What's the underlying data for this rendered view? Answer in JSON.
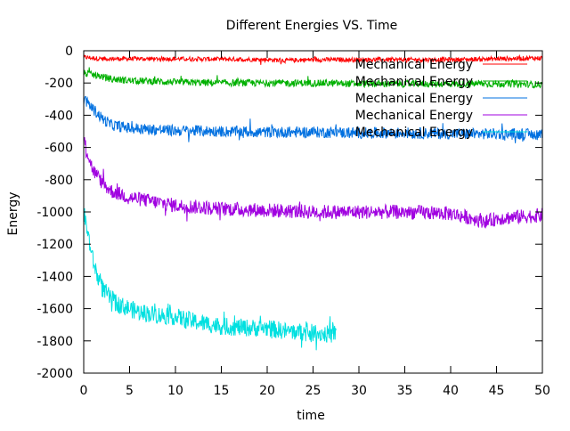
{
  "chart_data": {
    "type": "line",
    "title": "Different Energies VS. Time",
    "xlabel": "time",
    "ylabel": "Energy",
    "xlim": [
      0,
      50
    ],
    "ylim": [
      -2000,
      0
    ],
    "xticks": [
      "0",
      "5",
      "10",
      "15",
      "20",
      "25",
      "30",
      "35",
      "40",
      "45",
      "50"
    ],
    "yticks": [
      "0",
      "-200",
      "-400",
      "-600",
      "-800",
      "-1000",
      "-1200",
      "-1400",
      "-1600",
      "-1800",
      "-2000"
    ],
    "grid": false,
    "legend_position": "top-right",
    "series": [
      {
        "name": "Mechanical Energy",
        "color": "#ff0000",
        "x": [
          0,
          1,
          2,
          3,
          5,
          10,
          15,
          20,
          22,
          25,
          30,
          35,
          40,
          45,
          50
        ],
        "y": [
          -40,
          -45,
          -50,
          -50,
          -50,
          -50,
          -52,
          -55,
          -60,
          -55,
          -55,
          -55,
          -55,
          -50,
          -45
        ]
      },
      {
        "name": "Mechanical Energy",
        "color": "#00b000",
        "x": [
          0,
          1,
          2,
          3,
          5,
          8,
          10,
          15,
          20,
          25,
          30,
          35,
          40,
          45,
          50
        ],
        "y": [
          -140,
          -150,
          -160,
          -175,
          -185,
          -190,
          -195,
          -200,
          -200,
          -200,
          -205,
          -205,
          -205,
          -205,
          -210
        ]
      },
      {
        "name": "Mechanical Energy",
        "color": "#0070e0",
        "x": [
          0,
          1,
          2,
          3,
          5,
          8,
          10,
          15,
          20,
          25,
          30,
          35,
          40,
          45,
          50
        ],
        "y": [
          -300,
          -360,
          -420,
          -460,
          -480,
          -490,
          -495,
          -500,
          -505,
          -505,
          -510,
          -510,
          -515,
          -515,
          -520
        ]
      },
      {
        "name": "Mechanical Energy",
        "color": "#a000e0",
        "x": [
          0,
          0.5,
          1,
          2,
          3,
          5,
          8,
          10,
          15,
          20,
          25,
          30,
          35,
          40,
          44,
          45,
          50
        ],
        "y": [
          -550,
          -650,
          -740,
          -820,
          -870,
          -910,
          -940,
          -960,
          -980,
          -990,
          -1000,
          -1000,
          -1000,
          -1010,
          -1060,
          -1040,
          -1020
        ]
      },
      {
        "name": "Mechanical Energy",
        "color": "#00e0e0",
        "x": [
          0,
          0.5,
          1,
          1.5,
          2,
          3,
          4,
          5,
          6,
          8,
          10,
          12,
          15,
          18,
          20,
          22,
          25,
          27,
          27.5
        ],
        "y": [
          -1000,
          -1150,
          -1300,
          -1400,
          -1470,
          -1540,
          -1580,
          -1600,
          -1620,
          -1640,
          -1650,
          -1680,
          -1710,
          -1720,
          -1720,
          -1740,
          -1750,
          -1760,
          -1750
        ]
      }
    ]
  }
}
